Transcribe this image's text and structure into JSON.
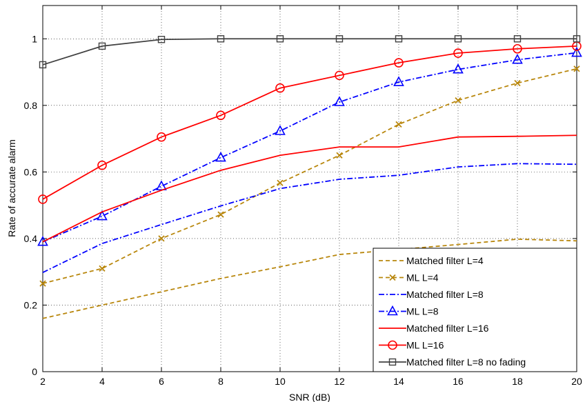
{
  "chart_data": {
    "type": "line",
    "title": "",
    "xlabel": "SNR (dB)",
    "ylabel": "Rate of accurate alarm",
    "xlim": [
      2,
      20
    ],
    "ylim": [
      0,
      1.1
    ],
    "grid": true,
    "legend_position": "bottom-right",
    "x": [
      2,
      4,
      6,
      8,
      10,
      12,
      14,
      16,
      18,
      20
    ],
    "x_ticks": [
      "2",
      "4",
      "6",
      "8",
      "10",
      "12",
      "14",
      "16",
      "18",
      "20"
    ],
    "y_ticks": [
      "0",
      "0.2",
      "0.4",
      "0.6",
      "0.8",
      "1"
    ],
    "series": [
      {
        "name": "Matched filter  L=4",
        "color": "#b8860b",
        "line": "dashed",
        "marker": "none",
        "values": [
          0.16,
          0.2,
          0.24,
          0.28,
          0.315,
          0.352,
          0.367,
          0.382,
          0.398,
          0.393
        ]
      },
      {
        "name": "ML  L=4",
        "color": "#b8860b",
        "line": "dashed",
        "marker": "x",
        "values": [
          0.265,
          0.31,
          0.4,
          0.472,
          0.567,
          0.65,
          0.743,
          0.815,
          0.867,
          0.91
        ]
      },
      {
        "name": "Matched filter  L=8",
        "color": "#0000ff",
        "line": "dashdot",
        "marker": "none",
        "values": [
          0.298,
          0.385,
          0.442,
          0.498,
          0.55,
          0.578,
          0.59,
          0.615,
          0.625,
          0.623
        ]
      },
      {
        "name": "ML  L=8",
        "color": "#0000ff",
        "line": "dashdot",
        "marker": "triangle",
        "values": [
          0.39,
          0.467,
          0.557,
          0.643,
          0.723,
          0.81,
          0.87,
          0.908,
          0.937,
          0.958
        ]
      },
      {
        "name": "Matched filter  L=16",
        "color": "#ff0000",
        "line": "solid",
        "marker": "none",
        "values": [
          0.39,
          0.48,
          0.545,
          0.605,
          0.65,
          0.675,
          0.675,
          0.705,
          0.707,
          0.71
        ]
      },
      {
        "name": "ML  L=16",
        "color": "#ff0000",
        "line": "solid",
        "marker": "circle",
        "values": [
          0.518,
          0.62,
          0.705,
          0.77,
          0.852,
          0.89,
          0.928,
          0.957,
          0.97,
          0.978
        ]
      },
      {
        "name": "Matched filter  L=8 no fading",
        "color": "#404040",
        "line": "solid",
        "marker": "square",
        "values": [
          0.922,
          0.978,
          0.998,
          1.0,
          1.0,
          1.0,
          1.0,
          1.0,
          1.0,
          1.0
        ]
      }
    ]
  }
}
